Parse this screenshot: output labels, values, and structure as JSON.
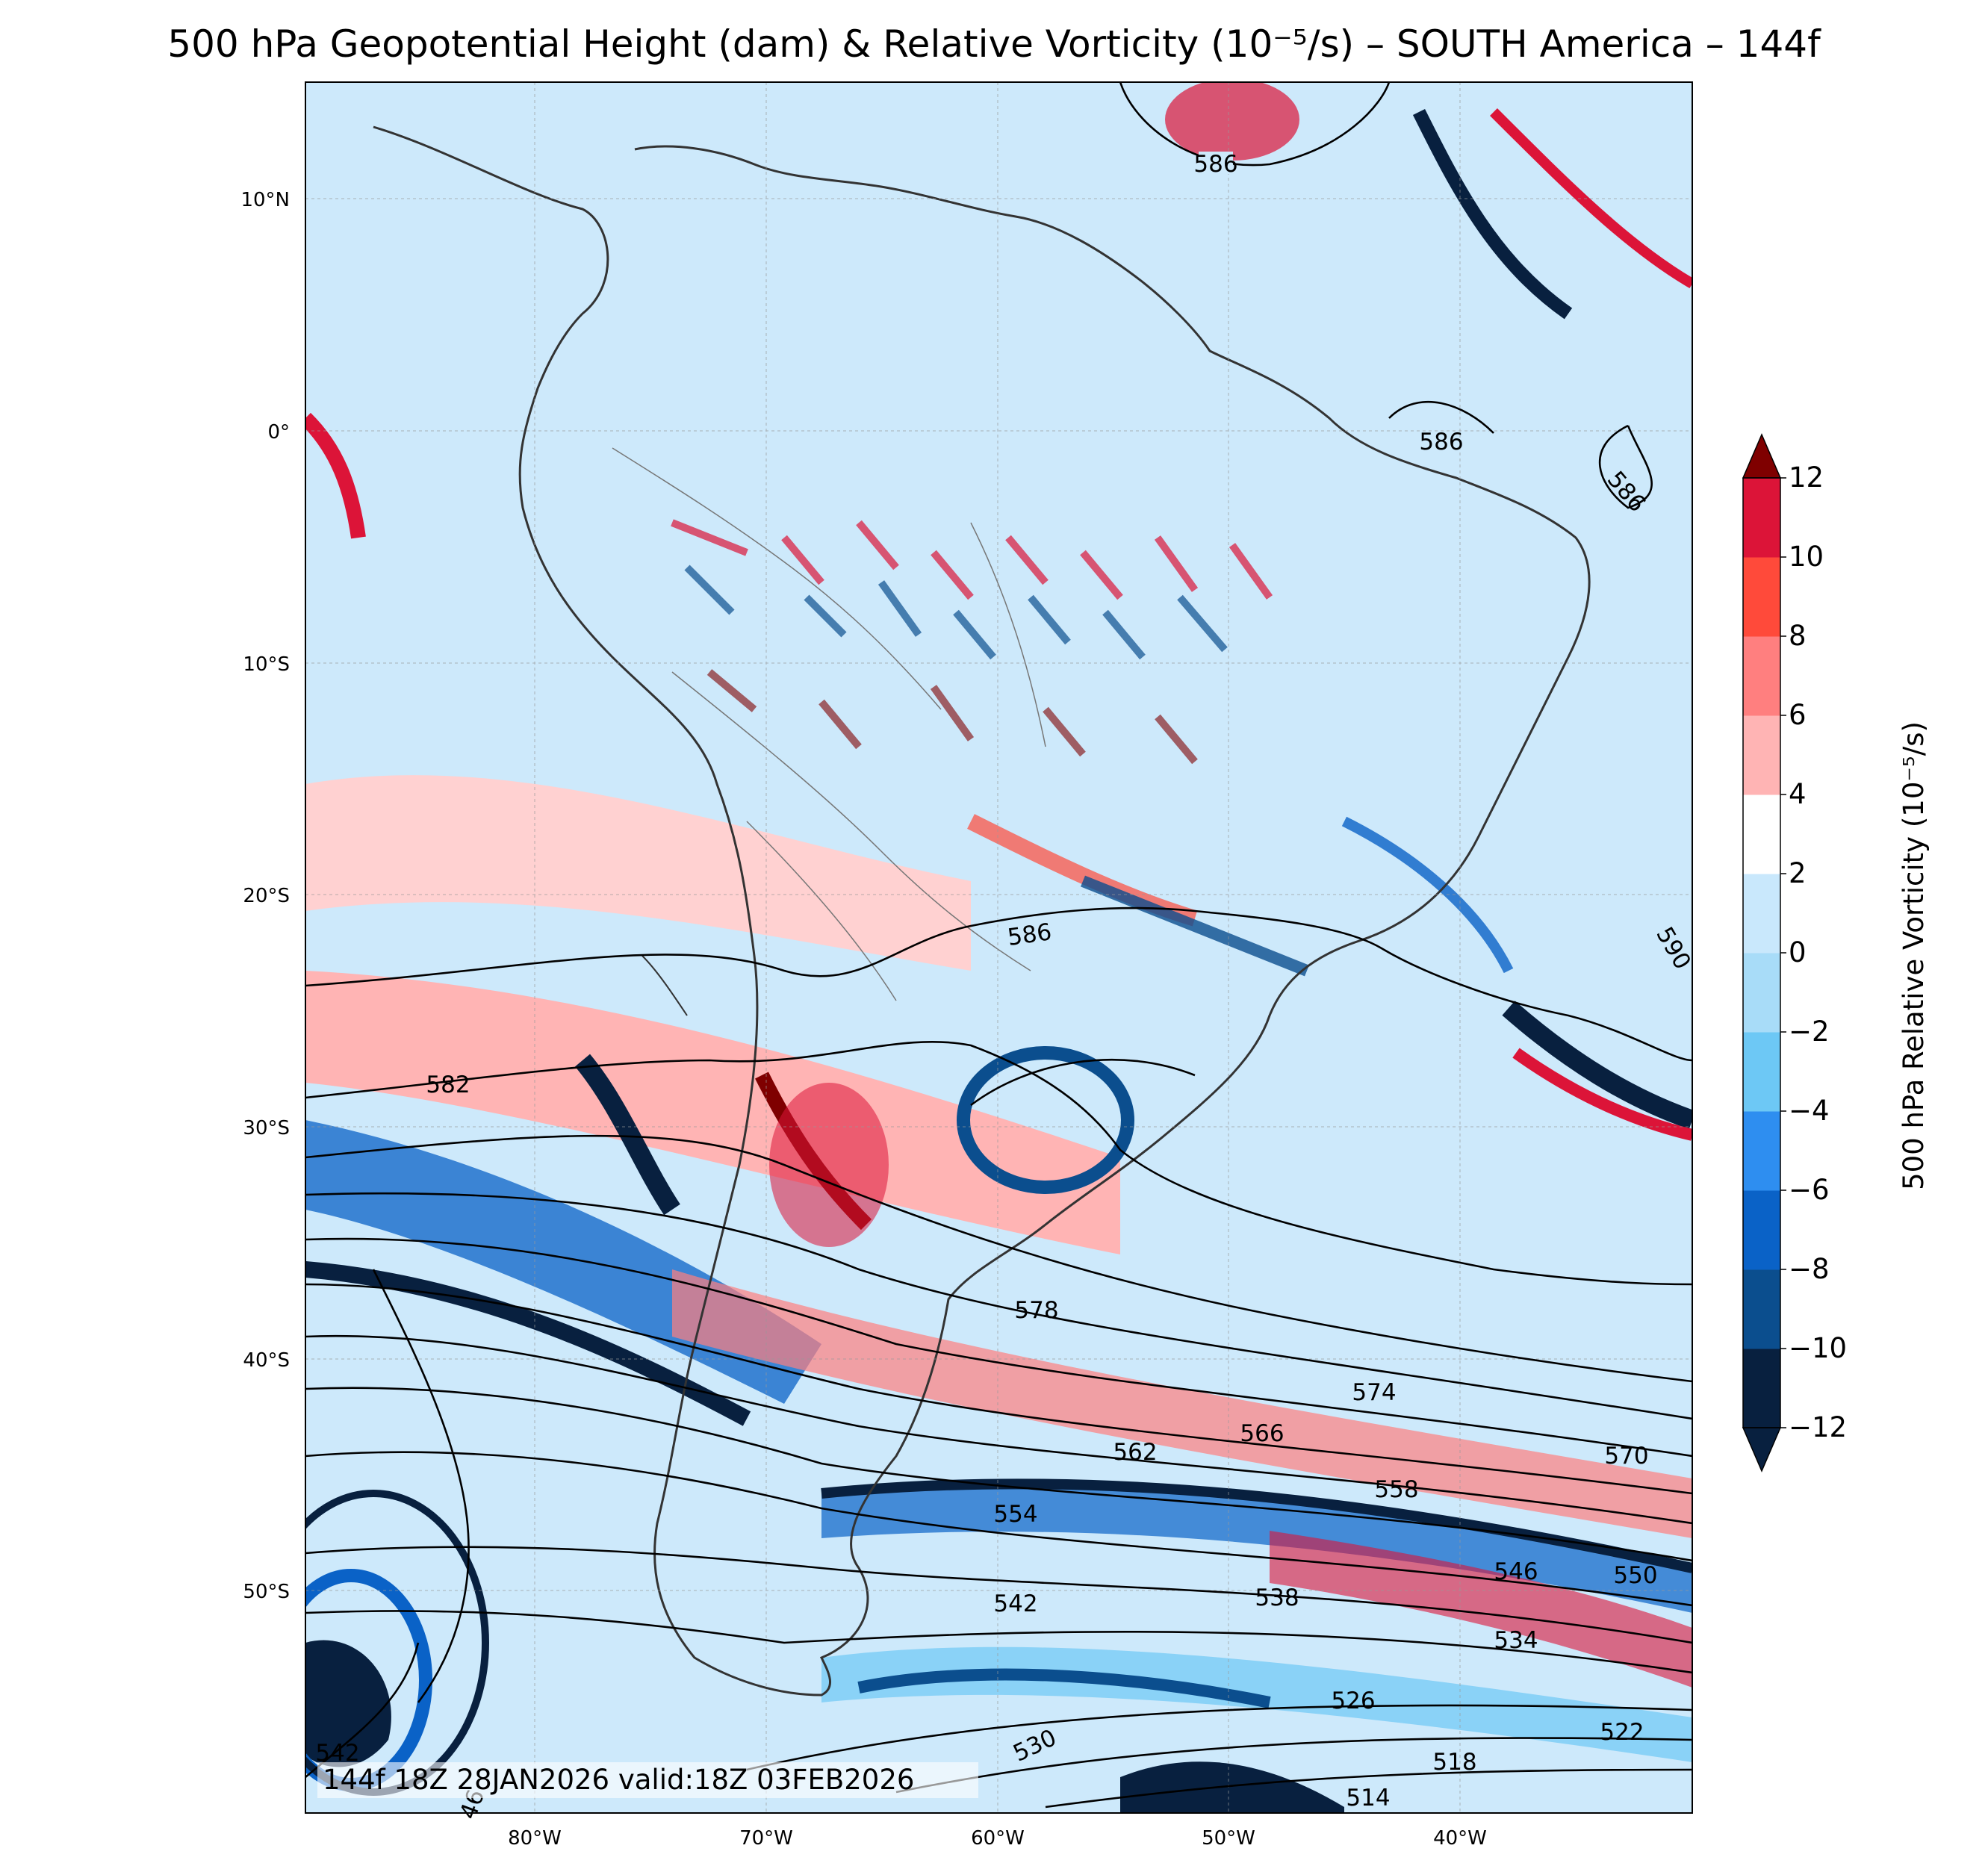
{
  "title": "500 hPa Geopotential Height (dam) & Relative Vorticity (10⁻⁵/s) – SOUTH America – 144f",
  "valid_stamp": "144f 18Z 28JAN2026 valid:18Z 03FEB2026",
  "lat_labels": [
    "10°N",
    "0°",
    "10°S",
    "20°S",
    "30°S",
    "40°S",
    "50°S"
  ],
  "lon_labels": [
    "80°W",
    "70°W",
    "60°W",
    "50°W",
    "40°W"
  ],
  "colorbar": {
    "label": "500 hPa Relative Vorticity (10⁻⁵/s)",
    "ticks": [
      "12",
      "10",
      "8",
      "6",
      "4",
      "2",
      "0",
      "−2",
      "−4",
      "−6",
      "−8",
      "−10",
      "−12"
    ],
    "levels": [
      -12,
      -10,
      -8,
      -6,
      -4,
      -2,
      0,
      2,
      4,
      6,
      8,
      10,
      12
    ],
    "colors": [
      "#08203f",
      "#0b4e8e",
      "#0a62c7",
      "#2e8ef0",
      "#6dc8f5",
      "#a8dcf8",
      "#c9e8fc",
      "#ffffff",
      "#ffb4b4",
      "#ff7f7f",
      "#ff4a3a",
      "#dc1438",
      "#7f0000"
    ]
  },
  "height_contours": [
    "586",
    "586",
    "586",
    "586",
    "590",
    "582",
    "578",
    "574",
    "570",
    "566",
    "562",
    "558",
    "554",
    "550",
    "546",
    "542",
    "538",
    "534",
    "530",
    "526",
    "522",
    "518",
    "514",
    "542",
    "46"
  ],
  "chart_data": {
    "type": "map",
    "region": "SOUTH America",
    "variables": [
      "500 hPa Geopotential Height (dam)",
      "500 hPa Relative Vorticity (10⁻⁵/s)"
    ],
    "lon_range": [
      -90,
      -30
    ],
    "lat_range": [
      -58,
      15
    ],
    "contour_levels_dam": [
      514,
      518,
      522,
      526,
      530,
      534,
      538,
      542,
      546,
      550,
      554,
      558,
      562,
      566,
      570,
      574,
      578,
      582,
      586,
      590
    ],
    "vorticity_levels": [
      -12,
      -10,
      -8,
      -6,
      -4,
      -2,
      0,
      2,
      4,
      6,
      8,
      10,
      12
    ]
  }
}
